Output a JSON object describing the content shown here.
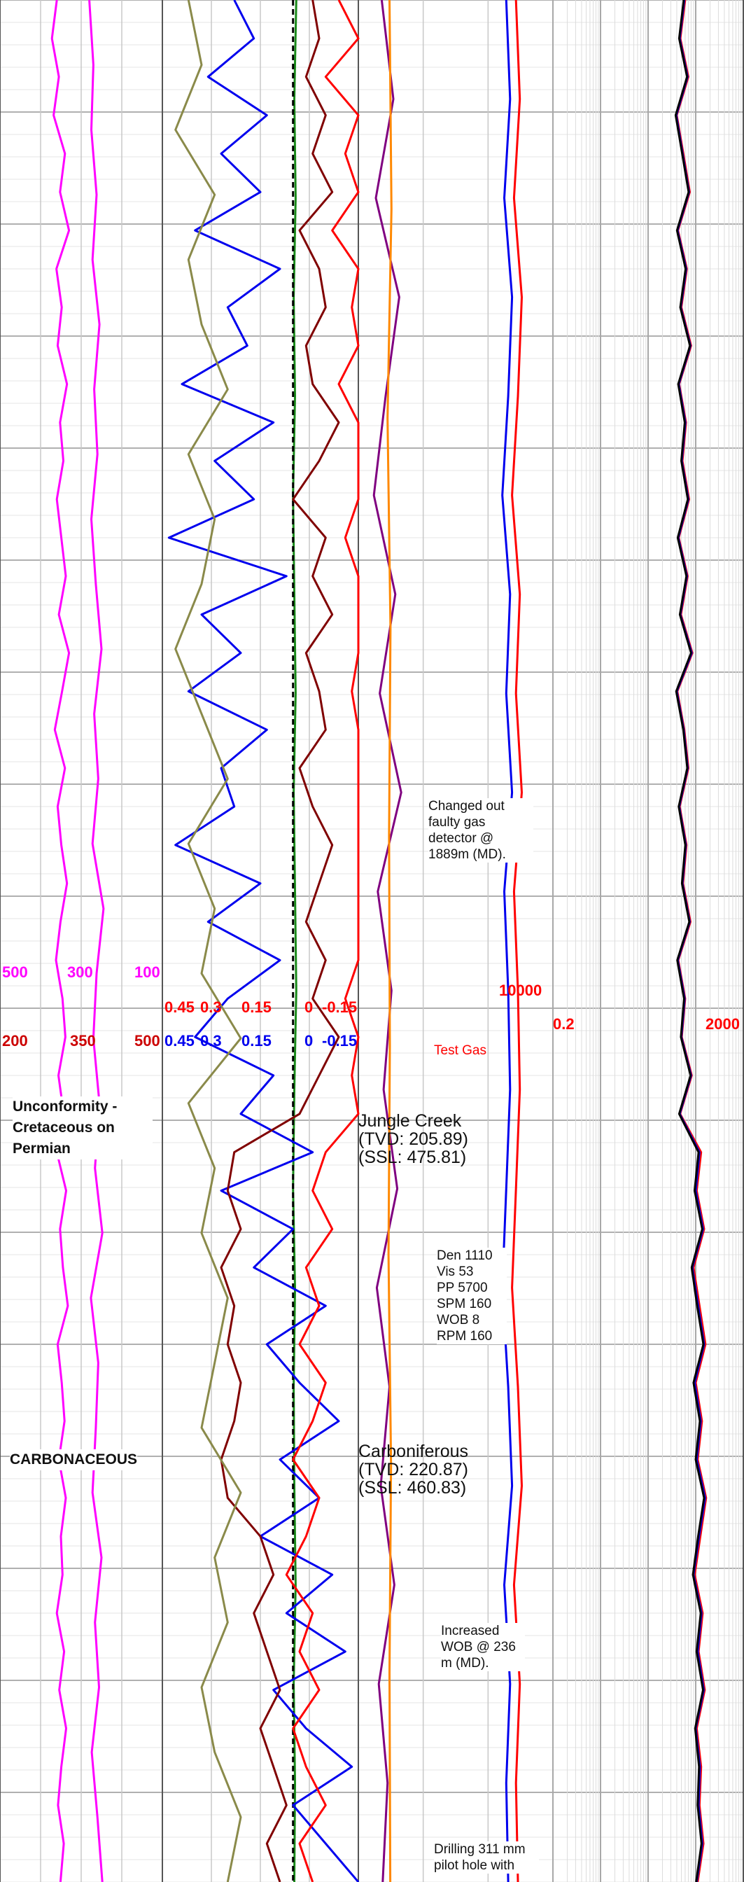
{
  "colors": {
    "gamma": "#ff00ff",
    "caliper": "#1a8a1a",
    "bitsize": "#000000",
    "neutron": "#0000ee",
    "density": "#800000",
    "gas": "#ff0000",
    "chromatograph": "#8a8a4a",
    "c2": "#800080",
    "c3": "#ff8800",
    "res_deep": "#ff0000",
    "res_med": "#0000ee",
    "res_shallow": "#000000",
    "grid": "#c8c8c8"
  },
  "scales": {
    "gr_min_pink": "500",
    "gr_mid_pink": "300",
    "gr_right_pink": "100",
    "cal_left": "200",
    "cal_mid": "350",
    "cal_right": "500",
    "phi_left_red": "0.45",
    "phi_mid_red": "0.3",
    "phi_right_red": "0.15",
    "phi_left_blue": "0.45",
    "phi_mid_blue": "0.3",
    "phi_right_blue": "0.15",
    "gas_left_red": "0",
    "gas_right_red": "-0.15",
    "gas_left_blue": "0",
    "gas_right_blue": "-0.15",
    "gas_max": "10000",
    "res_min": "0.2",
    "res_max": "2000"
  },
  "annotations": {
    "gas_detector": "Changed out\nfaulty gas\ndetector @\n1889m (MD).",
    "test_gas": "Test Gas",
    "mud_params": "Den 1110\nVis 53\nPP 5700\nSPM 160\nWOB 8\nRPM 160",
    "wob_increase": "Increased\nWOB @ 236\nm (MD).",
    "drilling_note": "Drilling 311 mm\npilot hole with"
  },
  "formations": [
    {
      "name": "Jungle Creek",
      "tvd": "(TVD: 205.89)",
      "ssl": "(SSL: 475.81)"
    },
    {
      "name": "Carboniferous",
      "tvd": "(TVD: 220.87)",
      "ssl": "(SSL: 460.83)"
    }
  ],
  "lithology": {
    "unconformity": "Unconformity -\nCretaceous on\nPermian",
    "carbonaceous": "CARBONACEOUS"
  },
  "chart_data": {
    "type": "line",
    "title": "",
    "grid": true,
    "tracks": [
      {
        "series": [
          {
            "name": "",
            "scale": "500-100",
            "color": "#ff00ff",
            "values": [
              360,
              372,
              355,
              368,
              340,
              352,
              330,
              361,
              348,
              358,
              335,
              352,
              344,
              360,
              349,
              338,
              355,
              330,
              347,
              365,
              340,
              358,
              349,
              335,
              351,
              362,
              346,
              339,
              356,
              343,
              360,
              337,
              352,
              345,
              333,
              358,
              348,
              341,
              355,
              338,
              350,
              346,
              360,
              342,
              354,
              337,
              349,
              357,
              343,
              351
            ]
          },
          {
            "name": "",
            "scale": "500-100",
            "color": "#ff00ff",
            "values": [
              280,
              270,
              275,
              262,
              272,
              255,
              268,
              260,
              275,
              264,
              250,
              268,
              258,
              272,
              245,
              262,
              270,
              255,
              266,
              248,
              276,
              258,
              264,
              272,
              250,
              266,
              256,
              274,
              260,
              248
            ]
          }
        ]
      },
      {
        "series": [
          {
            "name": "",
            "scale": "200-500",
            "color": "#1a8a1a",
            "values": [
              405,
              402,
              404,
              401,
              403,
              400,
              402,
              404,
              401,
              403,
              405,
              402,
              400,
              403,
              401,
              402,
              404,
              401,
              403,
              402
            ]
          },
          {
            "name": "",
            "scale": "200-500",
            "color": "#000000",
            "values": [
              400,
              400,
              400,
              400,
              400,
              400,
              400,
              400,
              400,
              400
            ]
          }
        ]
      },
      {
        "series": [
          {
            "name": "",
            "scale": "0.45-0.15",
            "color": "#0000ee",
            "values": [
              0.34,
              0.31,
              0.38,
              0.29,
              0.36,
              0.3,
              0.4,
              0.27,
              0.35,
              0.32,
              0.42,
              0.28,
              0.37,
              0.31,
              0.44,
              0.26,
              0.39,
              0.33,
              0.41,
              0.29,
              0.36,
              0.34,
              0.43,
              0.3,
              0.38,
              0.27,
              0.35,
              0.4,
              0.28,
              0.33,
              0.22,
              0.36,
              0.25,
              0.31,
              0.2,
              0.29,
              0.24,
              0.18,
              0.27,
              0.21,
              0.3,
              0.19,
              0.26,
              0.17,
              0.28,
              0.23,
              0.16,
              0.25,
              0.2,
              0.15
            ]
          },
          {
            "name": "",
            "scale": "0.45-0.15",
            "color": "#800000",
            "values": [
              0.22,
              0.21,
              0.23,
              0.2,
              0.22,
              0.19,
              0.24,
              0.21,
              0.2,
              0.23,
              0.22,
              0.18,
              0.21,
              0.25,
              0.2,
              0.22,
              0.19,
              0.23,
              0.21,
              0.2,
              0.24,
              0.22,
              0.19,
              0.21,
              0.23,
              0.2,
              0.22,
              0.18,
              0.21,
              0.24,
              0.34,
              0.35,
              0.33,
              0.36,
              0.34,
              0.35,
              0.33,
              0.34,
              0.36,
              0.35,
              0.3,
              0.28,
              0.31,
              0.29,
              0.27,
              0.3,
              0.28,
              0.26,
              0.29,
              0.27
            ]
          },
          {
            "name": "",
            "scale": "0.45-0.15",
            "color": "#ff0000",
            "values": [
              0.18,
              0.14,
              0.2,
              0.12,
              0.17,
              0.1,
              0.19,
              0.13,
              0.16,
              0.09,
              0.18,
              0.12,
              0.15,
              0.08,
              0.17,
              0.11,
              0.14,
              0.1,
              0.16,
              0.12,
              0.13,
              0.09,
              0.15,
              0.11,
              0.14,
              0.1,
              0.17,
              0.12,
              0.16,
              0.13,
              0.2,
              0.22,
              0.19,
              0.23,
              0.21,
              0.24,
              0.2,
              0.22,
              0.25,
              0.21,
              0.23,
              0.26,
              0.22,
              0.24,
              0.21,
              0.25,
              0.23,
              0.2,
              0.24,
              0.22
            ]
          },
          {
            "name": "",
            "scale": "0--0.15",
            "color": "#8a8a4a",
            "values": [
              -0.02,
              -0.03,
              -0.01,
              -0.04,
              -0.02,
              -0.03,
              -0.05,
              -0.02,
              -0.04,
              -0.03,
              -0.01,
              -0.03,
              -0.05,
              -0.02,
              -0.04,
              -0.03,
              -0.06,
              -0.02,
              -0.04,
              -0.03,
              -0.05,
              -0.04,
              -0.03,
              -0.06,
              -0.04,
              -0.05,
              -0.03,
              -0.04,
              -0.06,
              -0.05
            ]
          }
        ]
      },
      {
        "series": [
          {
            "name": "",
            "scale": "0-10000",
            "color": "#0000ee",
            "values": [
              7600,
              7800,
              7500,
              7900,
              7700,
              7400,
              7800,
              7600,
              7900,
              7500,
              7700,
              7800,
              7600,
              7400,
              7700,
              7900,
              7500,
              7800,
              7600,
              7700
            ]
          },
          {
            "name": "",
            "scale": "0-10000",
            "color": "#ff0000",
            "values": [
              8100,
              8300,
              8000,
              8400,
              8200,
              7900,
              8300,
              8100,
              8400,
              8000,
              8200,
              8300,
              8100,
              7900,
              8200,
              8400,
              8000,
              8300,
              8100,
              8200
            ]
          },
          {
            "name": "",
            "scale": "0-10000",
            "color": "#800080",
            "values": [
              1200,
              1800,
              900,
              2100,
              1400,
              800,
              1900,
              1100,
              2200,
              1000,
              1700,
              1300,
              2000,
              950,
              1600,
              1150,
              1850,
              1050,
              1500,
              1250
            ]
          },
          {
            "name": "",
            "scale": "0-10000",
            "color": "#ff8800",
            "values": [
              1600,
              1700,
              1500,
              1650,
              1580,
              1620,
              1550,
              1680,
              1600,
              1640
            ]
          }
        ]
      },
      {
        "series": [
          {
            "name": "",
            "scale": "0.2-2000",
            "color": "#ff0000",
            "values": [
              120,
              95,
              140,
              80,
              110,
              150,
              85,
              130,
              100,
              160,
              90,
              125,
              105,
              145,
              88,
              135,
              98,
              170,
              82,
              115,
              140,
              92,
              128,
              108,
              155,
              86,
              120,
              102,
              165,
              94,
              260,
              210,
              300,
              180,
              240,
              320,
              200,
              270,
              220,
              330,
              250,
              190,
              280,
              230,
              310,
              210,
              260,
              240,
              290,
              220
            ]
          },
          {
            "name": "",
            "scale": "0.2-2000",
            "color": "#0000ee",
            "values": [
              115,
              92,
              135,
              78,
              106,
              145,
              83,
              126,
              97,
              155,
              88,
              121,
              102,
              140,
              86,
              131,
              95,
              165,
              80,
              112,
              136,
              90,
              124,
              105,
              150,
              84,
              117,
              100,
              160,
              92,
              240,
              200,
              285,
              170,
              225,
              300,
              190,
              255,
              210,
              315,
              235,
              180,
              265,
              220,
              295,
              200,
              245,
              230,
              275,
              210
            ]
          },
          {
            "name": "",
            "scale": "0.2-2000",
            "color": "#000000",
            "values": [
              112,
              90,
              132,
              76,
              104,
              142,
              81,
              123,
              95,
              152,
              86,
              118,
              100,
              137,
              84,
              128,
              93,
              160,
              78,
              110,
              133,
              88,
              121,
              103,
              147,
              82,
              114,
              98,
              156,
              90,
              230,
              190,
              275,
              165,
              215,
              290,
              180,
              245,
              200,
              300,
              225,
              175,
              255,
              210,
              285,
              195,
              235,
              220,
              265,
              205
            ]
          }
        ]
      }
    ]
  }
}
